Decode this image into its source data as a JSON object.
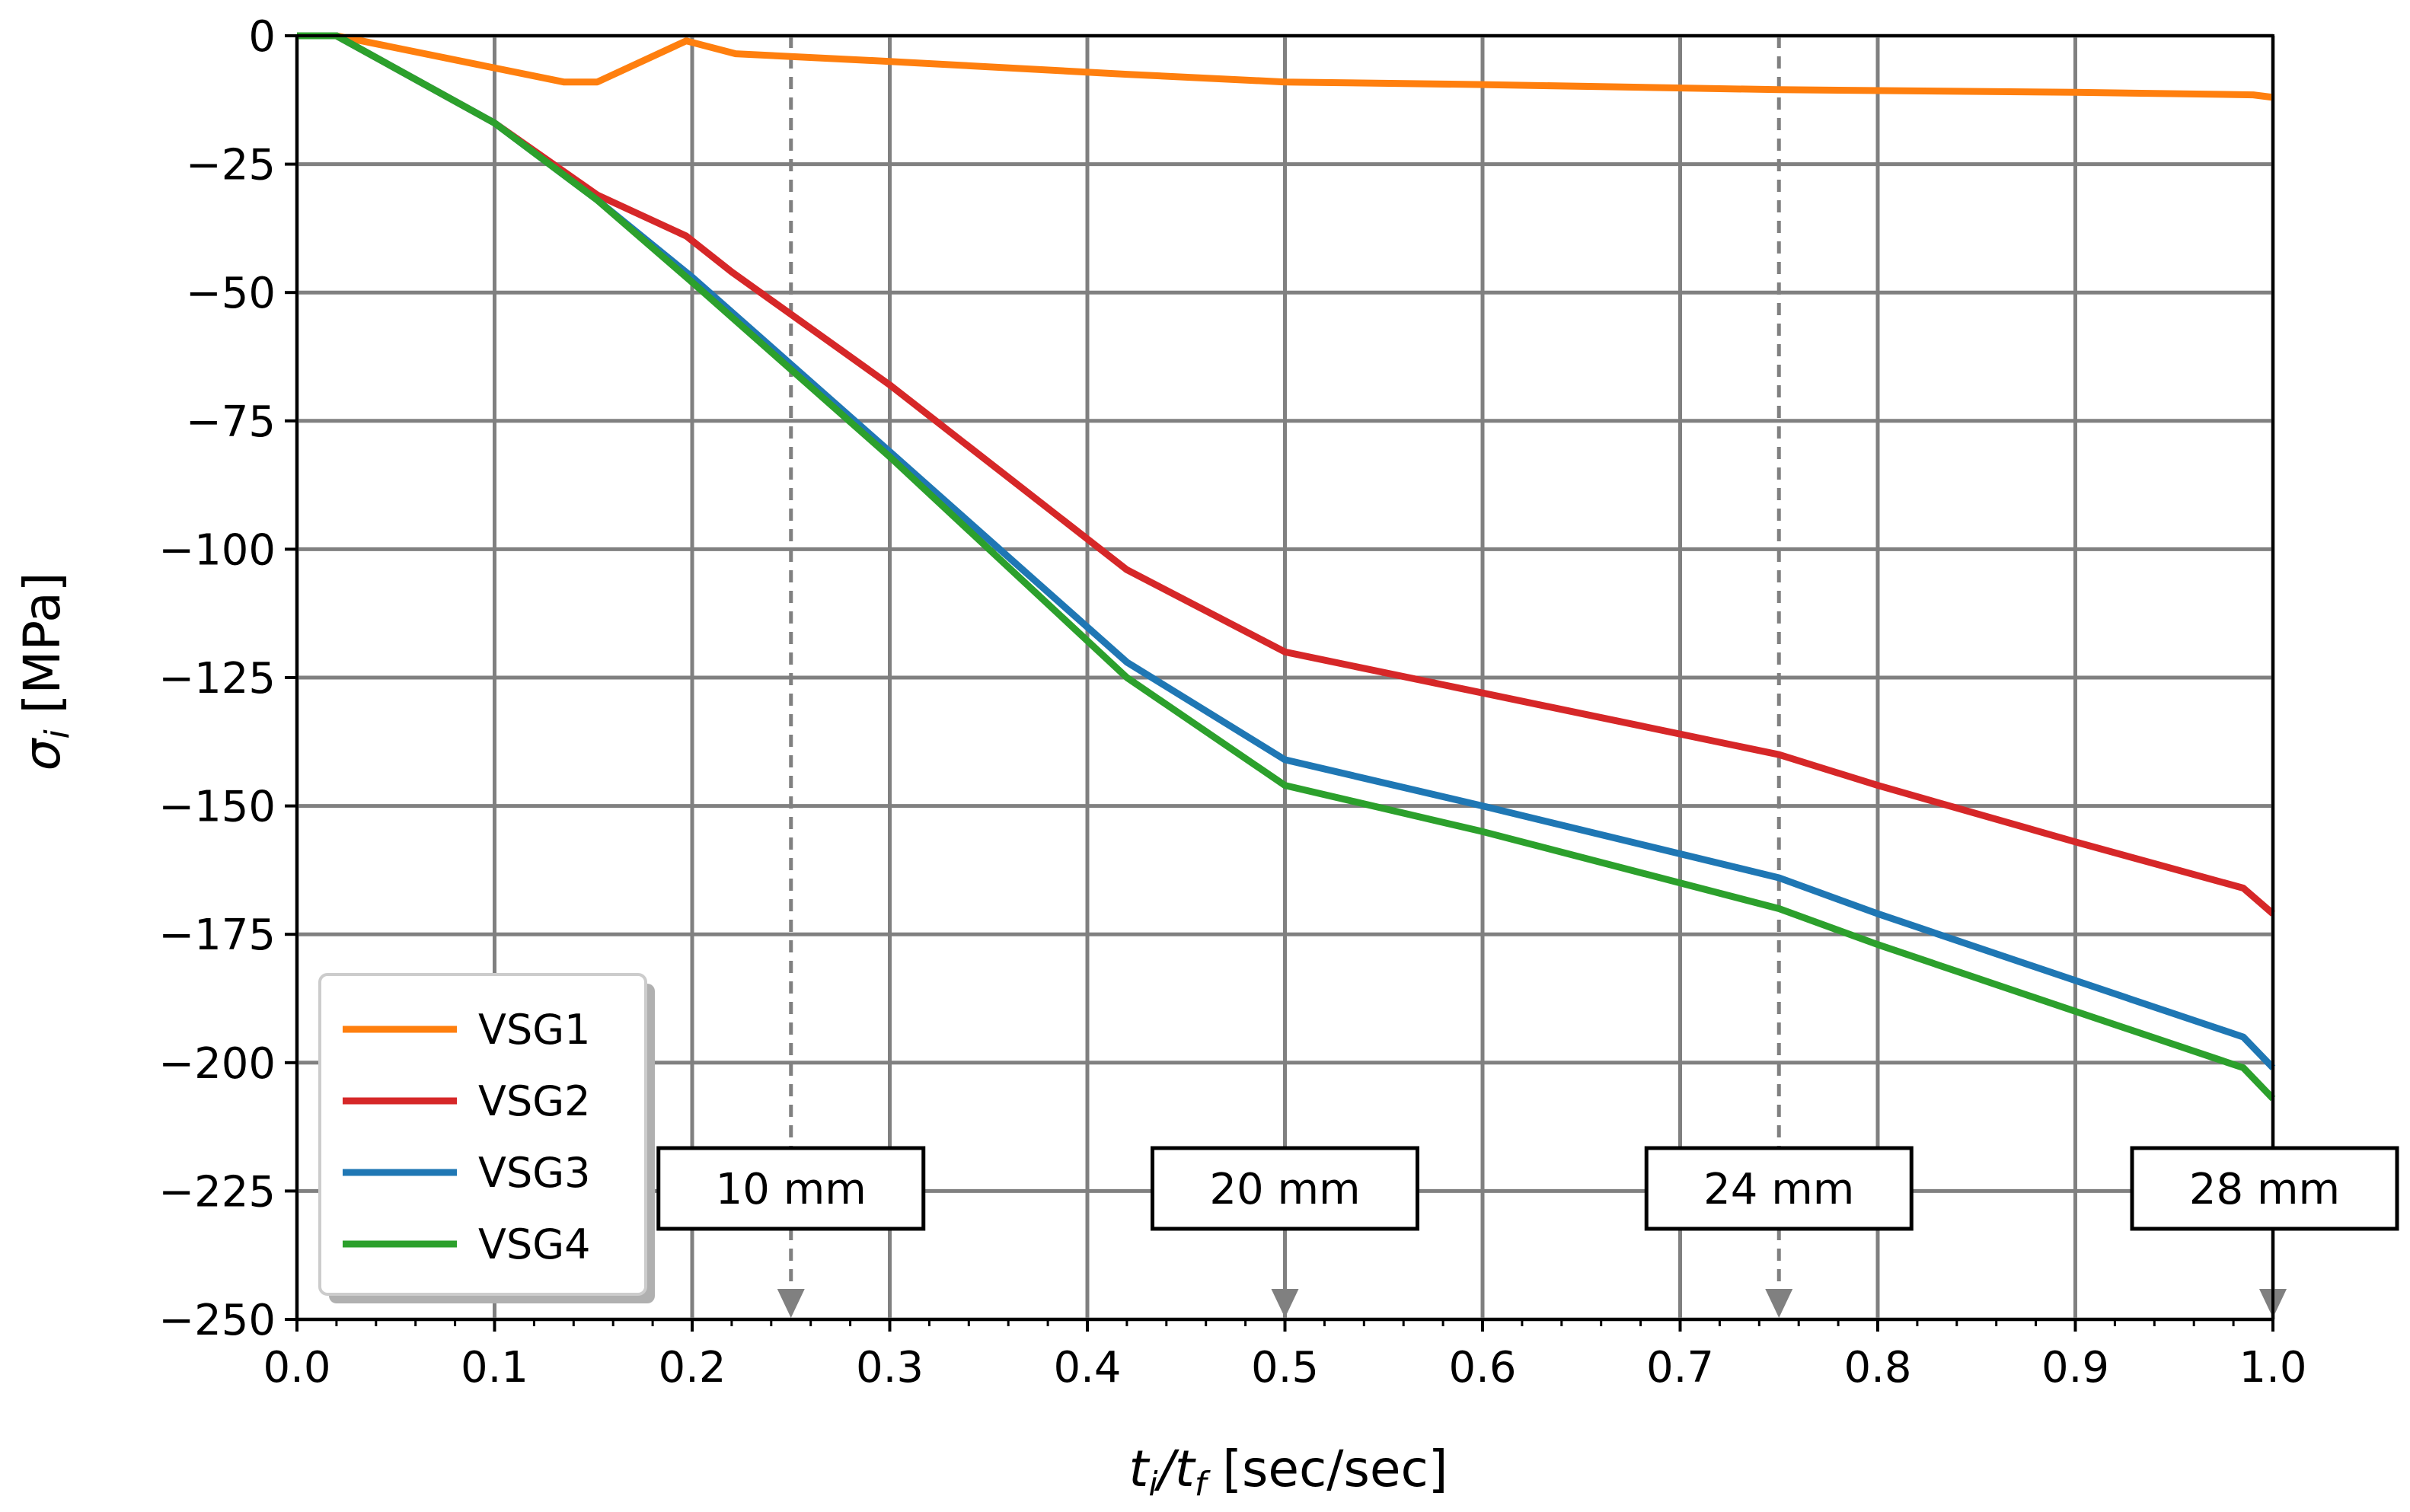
{
  "chart_data": {
    "type": "line",
    "title": "",
    "xlabel": {
      "main": "t",
      "sub": "i",
      "sep": "/t",
      "sub2": "f",
      "unit": " [sec/sec]"
    },
    "ylabel": {
      "main": "σ",
      "sub": "i",
      "unit": " [MPa]"
    },
    "xlim": [
      0.0,
      1.0
    ],
    "ylim": [
      -250,
      0
    ],
    "grid": true,
    "legend_position": "bottom-left",
    "x_ticks": [
      0.0,
      0.1,
      0.2,
      0.3,
      0.4,
      0.5,
      0.6,
      0.7,
      0.8,
      0.9,
      1.0
    ],
    "x_tick_labels": [
      "0.0",
      "0.1",
      "0.2",
      "0.3",
      "0.4",
      "0.5",
      "0.6",
      "0.7",
      "0.8",
      "0.9",
      "1.0"
    ],
    "y_ticks": [
      0,
      -25,
      -50,
      -75,
      -100,
      -125,
      -150,
      -175,
      -200,
      -225,
      -250
    ],
    "y_tick_labels": [
      "0",
      "−25",
      "−50",
      "−75",
      "−100",
      "−125",
      "−150",
      "−175",
      "−200",
      "−225",
      "−250"
    ],
    "series": [
      {
        "name": "VSG1",
        "color": "#ff7f0e",
        "x": [
          0.0,
          0.02,
          0.135,
          0.152,
          0.197,
          0.222,
          0.3,
          0.42,
          0.5,
          0.6,
          0.75,
          0.9,
          0.99,
          1.0
        ],
        "y": [
          0,
          0,
          -9,
          -9,
          -1,
          -3.5,
          -5,
          -7.5,
          -9,
          -9.5,
          -10.5,
          -11,
          -11.5,
          -12
        ]
      },
      {
        "name": "VSG2",
        "color": "#d62728",
        "x": [
          0.0,
          0.02,
          0.1,
          0.152,
          0.197,
          0.22,
          0.3,
          0.42,
          0.5,
          0.6,
          0.75,
          0.8,
          0.9,
          0.985,
          1.0
        ],
        "y": [
          0,
          0,
          -17,
          -31,
          -39,
          -46,
          -68,
          -104,
          -120,
          -128,
          -140,
          -146,
          -157,
          -166,
          -171
        ]
      },
      {
        "name": "VSG3",
        "color": "#1f77b4",
        "x": [
          0.0,
          0.02,
          0.1,
          0.152,
          0.2,
          0.3,
          0.42,
          0.5,
          0.6,
          0.75,
          0.8,
          0.9,
          0.985,
          1.0
        ],
        "y": [
          0,
          0,
          -17,
          -32,
          -47,
          -81,
          -122,
          -141,
          -150,
          -164,
          -171,
          -184,
          -195,
          -201
        ]
      },
      {
        "name": "VSG4",
        "color": "#2ca02c",
        "x": [
          0.0,
          0.02,
          0.1,
          0.152,
          0.2,
          0.3,
          0.42,
          0.5,
          0.6,
          0.75,
          0.8,
          0.9,
          0.985,
          1.0
        ],
        "y": [
          0,
          0,
          -17,
          -32,
          -48,
          -82,
          -125,
          -146,
          -155,
          -170,
          -177,
          -190,
          -201,
          -207
        ]
      }
    ],
    "annotations": [
      {
        "label": "10 mm",
        "x": 0.25
      },
      {
        "label": "20 mm",
        "x": 0.5
      },
      {
        "label": "24 mm",
        "x": 0.75
      },
      {
        "label": "28 mm",
        "x": 1.0
      }
    ],
    "annotation_color": "#808080",
    "grid_color": "#808080"
  }
}
